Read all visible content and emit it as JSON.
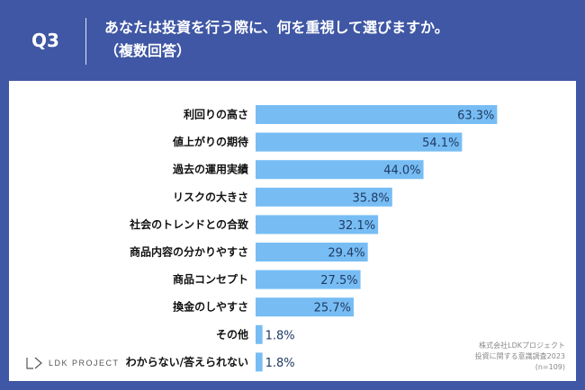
{
  "header": {
    "question": "Q3",
    "title_line1": "あなたは投資を行う際に、何を重視して選びますか。",
    "title_line2": "（複数回答）"
  },
  "colors": {
    "background": "#3f57a4",
    "bar": "#77bdf4",
    "panel": "#ffffff"
  },
  "chart_data": {
    "type": "bar",
    "orientation": "horizontal",
    "unit": "%",
    "categories": [
      "利回りの高さ",
      "値上がりの期待",
      "過去の運用実績",
      "リスクの大きさ",
      "社会のトレンドとの合致",
      "商品内容の分かりやすさ",
      "商品コンセプト",
      "換金のしやすさ",
      "その他",
      "わからない/答えられない"
    ],
    "values": [
      63.3,
      54.1,
      44.0,
      35.8,
      32.1,
      29.4,
      27.5,
      25.7,
      1.8,
      1.8
    ],
    "value_labels": [
      "63.3%",
      "54.1%",
      "44.0%",
      "35.8%",
      "32.1%",
      "29.4%",
      "27.5%",
      "25.7%",
      "1.8%",
      "1.8%"
    ],
    "xlim": [
      0,
      100
    ]
  },
  "footer": {
    "logo_text": "LDK PROJECT",
    "source_line1": "株式会社LDKプロジェクト",
    "source_line2": "投資に関する意識調査2023",
    "source_line3": "(n=109)"
  }
}
